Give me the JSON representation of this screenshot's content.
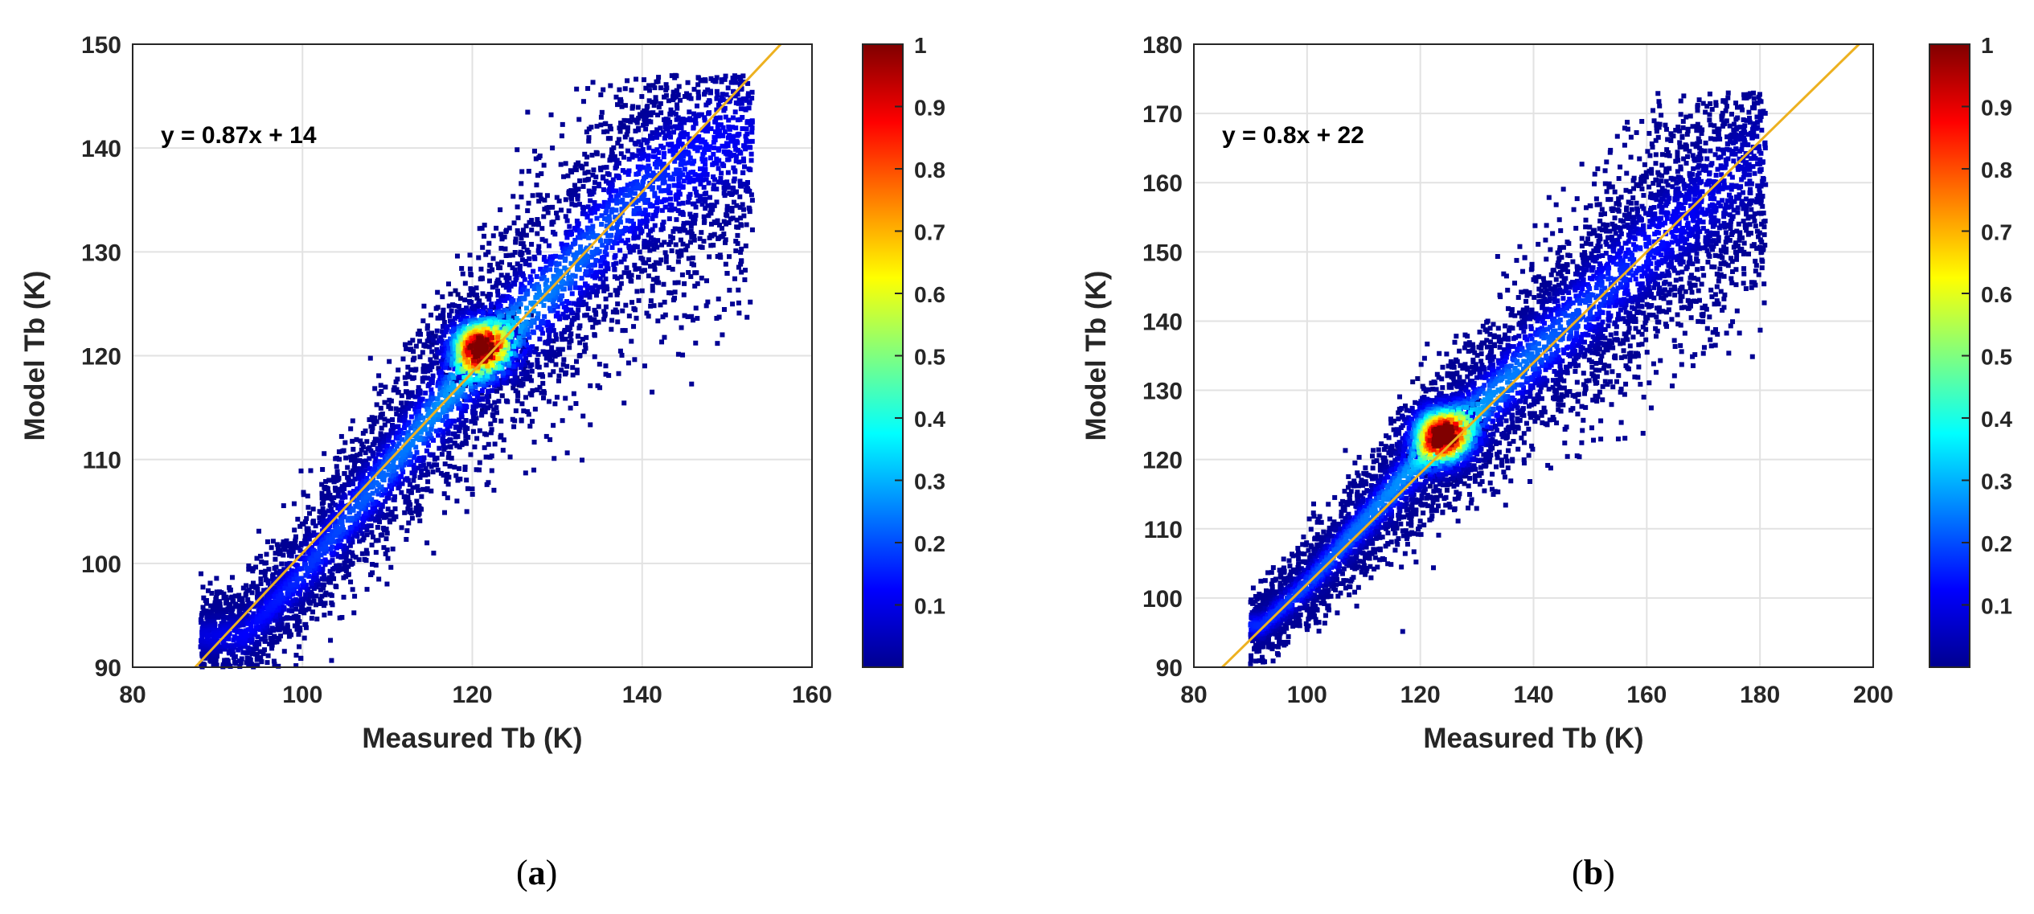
{
  "chart_data": [
    {
      "type": "scatter",
      "panel_label": "(a)",
      "panel_letter": "a",
      "xlabel": "Measured Tb (K)",
      "ylabel": "Model Tb (K)",
      "xlim": [
        80,
        160
      ],
      "ylim": [
        90,
        150
      ],
      "xticks": [
        80,
        100,
        120,
        140,
        160
      ],
      "yticks": [
        90,
        100,
        110,
        120,
        130,
        140,
        150
      ],
      "grid": true,
      "annotation": "y = 0.87x + 14",
      "fit": {
        "slope": 0.87,
        "intercept": 14,
        "color": "#edb120"
      },
      "density_peak": {
        "x": 121,
        "y": 120.8
      },
      "density_ridge": [
        [
          93,
          93
        ],
        [
          100,
          99
        ],
        [
          110,
          109
        ],
        [
          120,
          119
        ],
        [
          130,
          127
        ],
        [
          140,
          136
        ],
        [
          150,
          141
        ]
      ],
      "point_extent": {
        "x": [
          88,
          153
        ],
        "y": [
          90,
          147
        ]
      },
      "colorbar": {
        "min": 0,
        "max": 1,
        "ticks": [
          0.1,
          0.2,
          0.3,
          0.4,
          0.5,
          0.6,
          0.7,
          0.8,
          0.9,
          1
        ],
        "tick_labels": [
          "0.1",
          "0.2",
          "0.3",
          "0.4",
          "0.5",
          "0.6",
          "0.7",
          "0.8",
          "0.9",
          "1"
        ],
        "colormap": "jet"
      }
    },
    {
      "type": "scatter",
      "panel_label": "(b)",
      "panel_letter": "b",
      "xlabel": "Measured Tb (K)",
      "ylabel": "Model Tb (K)",
      "xlim": [
        80,
        200
      ],
      "ylim": [
        90,
        180
      ],
      "xticks": [
        80,
        100,
        120,
        140,
        160,
        180,
        200
      ],
      "yticks": [
        90,
        100,
        110,
        120,
        130,
        140,
        150,
        160,
        170,
        180
      ],
      "grid": true,
      "annotation": "y = 0.8x + 22",
      "fit": {
        "slope": 0.8,
        "intercept": 22,
        "color": "#edb120"
      },
      "density_peak": {
        "x": 124,
        "y": 123.5
      },
      "density_ridge": [
        [
          92,
          96
        ],
        [
          100,
          102
        ],
        [
          110,
          111
        ],
        [
          120,
          120
        ],
        [
          130,
          127
        ],
        [
          140,
          135
        ],
        [
          160,
          150
        ],
        [
          180,
          164
        ]
      ],
      "point_extent": {
        "x": [
          90,
          181
        ],
        "y": [
          90,
          173
        ]
      },
      "colorbar": {
        "min": 0,
        "max": 1,
        "ticks": [
          0.1,
          0.2,
          0.3,
          0.4,
          0.5,
          0.6,
          0.7,
          0.8,
          0.9,
          1
        ],
        "tick_labels": [
          "0.1",
          "0.2",
          "0.3",
          "0.4",
          "0.5",
          "0.6",
          "0.7",
          "0.8",
          "0.9",
          "1"
        ],
        "colormap": "jet"
      }
    }
  ]
}
